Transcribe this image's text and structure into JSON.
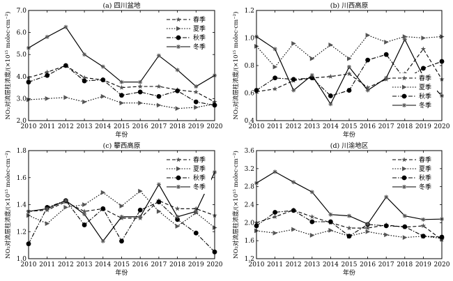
{
  "chart_data": [
    {
      "type": "line",
      "title": "(a) 四川盆地",
      "xlabel": "年份",
      "ylabel": "NO₂对流层柱浓度/(×10¹⁵ molec·cm⁻²)",
      "x": [
        2010,
        2011,
        2012,
        2013,
        2014,
        2015,
        2016,
        2017,
        2018,
        2019,
        2020
      ],
      "ylim": [
        2.0,
        7.0
      ],
      "yticks": [
        "2.0",
        "3.0",
        "4.0",
        "5.0",
        "6.0",
        "7.0"
      ],
      "legend_position": "top-right",
      "series": [
        {
          "name": "春季",
          "marker": "star",
          "dash": "dashed",
          "values": [
            3.95,
            4.2,
            4.5,
            3.95,
            3.85,
            3.5,
            3.55,
            3.55,
            3.4,
            3.3,
            2.85
          ]
        },
        {
          "name": "夏季",
          "marker": "triangle",
          "dash": "dotted",
          "values": [
            2.95,
            3.0,
            3.05,
            2.85,
            3.1,
            2.8,
            2.8,
            2.7,
            2.55,
            2.6,
            2.75
          ]
        },
        {
          "name": "秋季",
          "marker": "circle",
          "dash": "dashdot",
          "values": [
            3.75,
            4.05,
            4.5,
            3.8,
            3.85,
            3.15,
            3.3,
            3.1,
            3.35,
            2.85,
            2.7
          ]
        },
        {
          "name": "冬季",
          "marker": "cross",
          "dash": "solid",
          "values": [
            5.3,
            5.8,
            6.25,
            5.0,
            4.45,
            3.75,
            3.75,
            4.95,
            4.3,
            3.55,
            4.05
          ]
        }
      ]
    },
    {
      "type": "line",
      "title": "(b) 川西高原",
      "xlabel": "年份",
      "ylabel": "NO₂对流层柱浓度/(×10¹⁵ molec·cm⁻²)",
      "x": [
        2010,
        2011,
        2012,
        2013,
        2014,
        2015,
        2016,
        2017,
        2018,
        2019,
        2020
      ],
      "ylim": [
        0.4,
        1.2
      ],
      "yticks": [
        "0.4",
        "0.6",
        "0.8",
        "1.0",
        "1.2"
      ],
      "legend_position": "bottom-right",
      "series": [
        {
          "name": "春季",
          "marker": "star",
          "dash": "dashed",
          "values": [
            0.61,
            0.63,
            0.69,
            0.71,
            0.72,
            0.74,
            0.64,
            0.7,
            0.74,
            0.92,
            0.7
          ]
        },
        {
          "name": "夏季",
          "marker": "triangle",
          "dash": "dotted",
          "values": [
            0.94,
            0.79,
            0.96,
            0.85,
            0.95,
            0.85,
            1.02,
            0.97,
            1.01,
            1.0,
            1.01
          ]
        },
        {
          "name": "秋季",
          "marker": "circle",
          "dash": "dashdot",
          "values": [
            0.62,
            0.71,
            0.7,
            0.71,
            0.58,
            0.62,
            0.84,
            0.88,
            0.7,
            0.78,
            0.83
          ]
        },
        {
          "name": "冬季",
          "marker": "cross",
          "dash": "solid",
          "values": [
            1.01,
            0.92,
            0.62,
            0.73,
            0.52,
            0.79,
            0.62,
            0.71,
            0.99,
            0.72,
            0.58
          ]
        }
      ]
    },
    {
      "type": "line",
      "title": "(c) 攀西高原",
      "xlabel": "年份",
      "ylabel": "NO₂对流层柱浓度/(×10¹⁵ molec·cm⁻²)",
      "x": [
        2010,
        2011,
        2012,
        2013,
        2014,
        2015,
        2016,
        2017,
        2018,
        2019,
        2020
      ],
      "ylim": [
        1.0,
        1.8
      ],
      "yticks": [
        "1.0",
        "1.2",
        "1.4",
        "1.6",
        "1.8"
      ],
      "legend_position": "top-right",
      "series": [
        {
          "name": "春季",
          "marker": "star",
          "dash": "dashed",
          "values": [
            1.35,
            1.36,
            1.42,
            1.35,
            1.37,
            1.3,
            1.3,
            1.43,
            1.37,
            1.37,
            1.32
          ]
        },
        {
          "name": "夏季",
          "marker": "triangle",
          "dash": "dotted",
          "values": [
            1.32,
            1.26,
            1.38,
            1.4,
            1.49,
            1.39,
            1.5,
            1.35,
            1.24,
            1.34,
            1.23
          ]
        },
        {
          "name": "秋季",
          "marker": "circle",
          "dash": "dashdot",
          "values": [
            1.11,
            1.38,
            1.43,
            1.25,
            1.37,
            1.13,
            1.36,
            1.42,
            1.29,
            1.19,
            1.05
          ]
        },
        {
          "name": "冬季",
          "marker": "cross",
          "dash": "solid",
          "values": [
            1.35,
            1.37,
            1.43,
            1.33,
            1.13,
            1.31,
            1.31,
            1.55,
            1.31,
            1.35,
            1.64
          ]
        }
      ]
    },
    {
      "type": "line",
      "title": "(d) 川渝地区",
      "xlabel": "年份",
      "ylabel": "NO₂对流层柱浓度/(×10¹⁵ molec·cm⁻²)",
      "x": [
        2010,
        2011,
        2012,
        2013,
        2014,
        2015,
        2016,
        2017,
        2018,
        2019,
        2020
      ],
      "ylim": [
        1.2,
        3.6
      ],
      "yticks": [
        "1.2",
        "1.6",
        "2.0",
        "2.4",
        "2.8",
        "3.2",
        "3.6"
      ],
      "legend_position": "top-right",
      "series": [
        {
          "name": "春季",
          "marker": "star",
          "dash": "dashed",
          "values": [
            2.0,
            2.13,
            2.28,
            2.13,
            2.0,
            1.88,
            1.88,
            1.95,
            1.9,
            1.93,
            1.62
          ]
        },
        {
          "name": "夏季",
          "marker": "triangle",
          "dash": "dotted",
          "values": [
            1.82,
            1.77,
            1.85,
            1.72,
            1.83,
            1.7,
            1.8,
            1.73,
            1.67,
            1.7,
            1.65
          ]
        },
        {
          "name": "秋季",
          "marker": "circle",
          "dash": "dashdot",
          "values": [
            1.93,
            2.23,
            2.27,
            2.02,
            2.02,
            1.7,
            1.96,
            1.93,
            1.91,
            1.7,
            1.68
          ]
        },
        {
          "name": "冬季",
          "marker": "cross",
          "dash": "solid",
          "values": [
            2.88,
            3.13,
            2.9,
            2.68,
            2.18,
            2.15,
            1.97,
            2.57,
            2.15,
            2.07,
            2.08
          ]
        }
      ]
    }
  ]
}
